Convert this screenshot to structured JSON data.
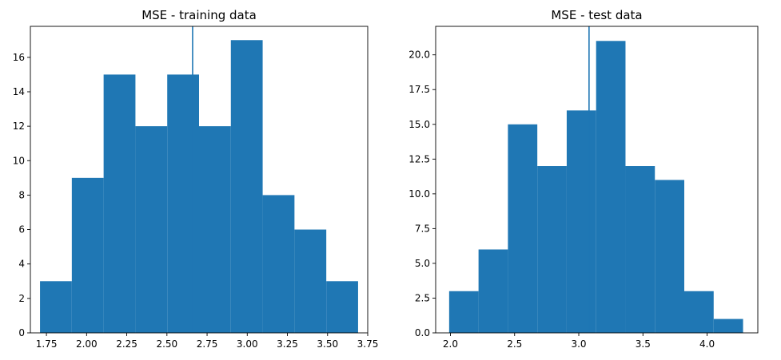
{
  "chart_data": [
    {
      "type": "histogram",
      "title": "MSE - training data",
      "xlabel": "",
      "ylabel": "",
      "xlim": [
        1.65,
        3.75
      ],
      "ylim": [
        0,
        17.8
      ],
      "xticks": [
        "1.75",
        "2.00",
        "2.25",
        "2.50",
        "2.75",
        "3.00",
        "3.25",
        "3.50",
        "3.75"
      ],
      "yticks": [
        "0",
        "2",
        "4",
        "6",
        "8",
        "10",
        "12",
        "14",
        "16"
      ],
      "bin_edges": [
        1.71,
        1.908,
        2.106,
        2.304,
        2.502,
        2.7,
        2.898,
        3.096,
        3.294,
        3.492,
        3.69
      ],
      "counts": [
        3,
        9,
        15,
        12,
        15,
        12,
        17,
        8,
        6,
        3
      ],
      "vline": 2.66,
      "color": "#1f77b4",
      "grid": false
    },
    {
      "type": "histogram",
      "title": "MSE - test data",
      "xlabel": "",
      "ylabel": "",
      "xlim": [
        1.885,
        4.395
      ],
      "ylim": [
        0,
        22.05
      ],
      "xticks": [
        "2.0",
        "2.5",
        "3.0",
        "3.5",
        "4.0"
      ],
      "yticks": [
        "0.0",
        "2.5",
        "5.0",
        "7.5",
        "10.0",
        "12.5",
        "15.0",
        "17.5",
        "20.0"
      ],
      "bin_edges": [
        1.99,
        2.219,
        2.448,
        2.677,
        2.906,
        3.135,
        3.364,
        3.593,
        3.822,
        4.051,
        4.28
      ],
      "counts": [
        3,
        6,
        15,
        12,
        16,
        21,
        12,
        11,
        3,
        1
      ],
      "vline": 3.08,
      "color": "#1f77b4",
      "grid": false
    }
  ]
}
